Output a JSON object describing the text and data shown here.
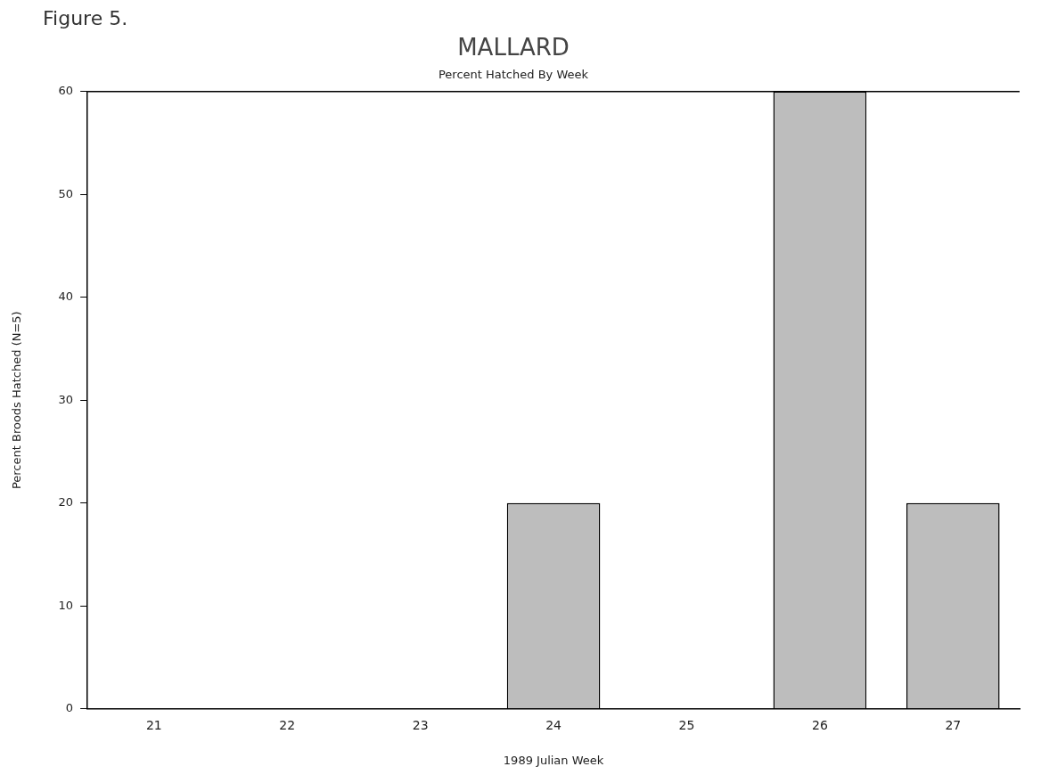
{
  "chart_data": {
    "type": "bar",
    "title": "MALLARD",
    "subtitle": "Percent Hatched By Week",
    "xlabel": "1989 Julian Week",
    "ylabel": "Percent Broods Hatched (N=5)",
    "annotations": [
      "Figure 5."
    ],
    "categories": [
      "21",
      "22",
      "23",
      "24",
      "25",
      "26",
      "27"
    ],
    "values": [
      0,
      0,
      0,
      20,
      0,
      60,
      20
    ],
    "color": "#bdbdbd",
    "ylim": [
      0,
      60
    ],
    "yticks": [
      0,
      10,
      20,
      30,
      40,
      50,
      60
    ],
    "grid": false,
    "legend": false
  }
}
